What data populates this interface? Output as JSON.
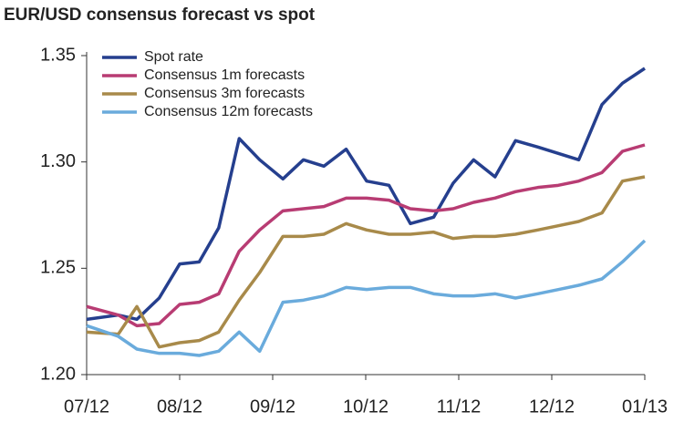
{
  "chart_data": {
    "type": "line",
    "title": "EUR/USD consensus forecast vs spot",
    "x": [
      0,
      0.34,
      0.54,
      0.78,
      1.0,
      1.21,
      1.42,
      1.64,
      1.86,
      2.11,
      2.33,
      2.55,
      2.79,
      3.01,
      3.25,
      3.48,
      3.73,
      3.94,
      4.16,
      4.39,
      4.61,
      4.85,
      5.07,
      5.29,
      5.54,
      5.76,
      6.0
    ],
    "series": [
      {
        "name": "Spot rate",
        "color": "#253f8e",
        "values": [
          1.226,
          1.228,
          1.226,
          1.236,
          1.252,
          1.253,
          1.269,
          1.311,
          1.301,
          1.292,
          1.301,
          1.298,
          1.306,
          1.291,
          1.289,
          1.271,
          1.274,
          1.29,
          1.301,
          1.293,
          1.31,
          1.307,
          1.304,
          1.301,
          1.327,
          1.337,
          1.344
        ]
      },
      {
        "name": "Consensus 1m forecasts",
        "color": "#b83c73",
        "values": [
          1.232,
          1.228,
          1.223,
          1.224,
          1.233,
          1.234,
          1.238,
          1.258,
          1.268,
          1.277,
          1.278,
          1.279,
          1.283,
          1.283,
          1.282,
          1.278,
          1.277,
          1.278,
          1.281,
          1.283,
          1.286,
          1.288,
          1.289,
          1.291,
          1.295,
          1.305,
          1.308
        ]
      },
      {
        "name": "Consensus 3m forecasts",
        "color": "#a88a4a",
        "values": [
          1.22,
          1.219,
          1.232,
          1.213,
          1.215,
          1.216,
          1.22,
          1.235,
          1.248,
          1.265,
          1.265,
          1.266,
          1.271,
          1.268,
          1.266,
          1.266,
          1.267,
          1.264,
          1.265,
          1.265,
          1.266,
          1.268,
          1.27,
          1.272,
          1.276,
          1.291,
          1.293
        ]
      },
      {
        "name": "Consensus 12m forecasts",
        "color": "#6aabdc",
        "values": [
          1.223,
          1.218,
          1.212,
          1.21,
          1.21,
          1.209,
          1.211,
          1.22,
          1.211,
          1.234,
          1.235,
          1.237,
          1.241,
          1.24,
          1.241,
          1.241,
          1.238,
          1.237,
          1.237,
          1.238,
          1.236,
          1.238,
          1.24,
          1.242,
          1.245,
          1.253,
          1.263
        ]
      }
    ],
    "xlim": [
      0,
      6
    ],
    "xticks": [
      {
        "value": 0,
        "label": "07/12"
      },
      {
        "value": 1,
        "label": "08/12"
      },
      {
        "value": 2,
        "label": "09/12"
      },
      {
        "value": 3,
        "label": "10/12"
      },
      {
        "value": 4,
        "label": "11/12"
      },
      {
        "value": 5,
        "label": "12/12"
      },
      {
        "value": 6,
        "label": "01/13"
      }
    ],
    "ylim": [
      1.2,
      1.35
    ],
    "yticks": [
      {
        "value": 1.2,
        "label": "1.20"
      },
      1.25,
      {
        "value": 1.3,
        "label": "1.30"
      },
      1.35
    ],
    "legend": "upper left"
  }
}
